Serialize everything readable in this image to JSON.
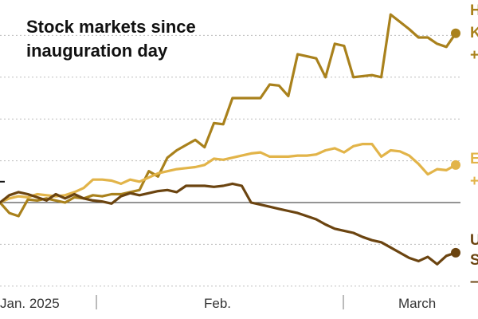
{
  "chart_data": {
    "type": "line",
    "title_lines": [
      "Stock markets since",
      "inauguration day"
    ],
    "xlabel": "",
    "ylabel": "",
    "x_ticks": [
      "Jan. 2025",
      "Feb.",
      "March"
    ],
    "ylim": [
      -8,
      20
    ],
    "baseline": 0,
    "grid": true,
    "legend": "end-labels-right",
    "series": [
      {
        "name": "Hong Kong",
        "end_label_lines": [
          "H",
          "K",
          "+"
        ],
        "color": "#a9811c",
        "y": [
          0.0,
          -1.0,
          -1.3,
          0.3,
          0.2,
          0.4,
          0.2,
          0.0,
          0.5,
          0.4,
          0.7,
          0.6,
          0.8,
          0.8,
          1.0,
          1.2,
          3.0,
          2.5,
          4.3,
          5.0,
          5.5,
          6.0,
          5.3,
          7.6,
          7.5,
          10.0,
          10.0,
          10.0,
          10.0,
          11.3,
          11.2,
          10.2,
          14.2,
          14.0,
          13.8,
          12.0,
          15.2,
          15.0,
          12.0,
          12.1,
          12.2,
          12.0,
          18.0,
          17.3,
          16.6,
          15.8,
          15.8,
          15.2,
          14.9,
          16.2
        ]
      },
      {
        "name": "Europe",
        "end_label_lines": [
          "E",
          "+"
        ],
        "color": "#e2b449",
        "y": [
          0.0,
          0.4,
          0.6,
          0.5,
          0.8,
          0.7,
          0.6,
          0.7,
          1.0,
          1.4,
          2.2,
          2.2,
          2.1,
          1.8,
          2.2,
          2.0,
          2.4,
          2.8,
          3.0,
          3.2,
          3.3,
          3.4,
          3.6,
          4.2,
          4.1,
          4.3,
          4.5,
          4.7,
          4.8,
          4.4,
          4.4,
          4.4,
          4.5,
          4.5,
          4.6,
          5.0,
          5.2,
          4.8,
          5.4,
          5.6,
          5.6,
          4.4,
          5.0,
          4.9,
          4.5,
          3.7,
          2.7,
          3.2,
          3.1,
          3.6
        ]
      },
      {
        "name": "United States",
        "end_label_lines": [
          "U",
          "S",
          "–"
        ],
        "color": "#6b4410",
        "y": [
          0.0,
          0.7,
          1.0,
          0.8,
          0.5,
          0.2,
          0.8,
          0.4,
          0.8,
          0.4,
          0.2,
          0.1,
          -0.1,
          0.6,
          0.9,
          0.7,
          0.9,
          1.1,
          1.2,
          1.0,
          1.6,
          1.6,
          1.6,
          1.5,
          1.6,
          1.8,
          1.6,
          0.0,
          -0.2,
          -0.4,
          -0.6,
          -0.8,
          -1.0,
          -1.3,
          -1.6,
          -2.1,
          -2.5,
          -2.7,
          -2.9,
          -3.3,
          -3.6,
          -3.8,
          -4.3,
          -4.8,
          -5.3,
          -5.6,
          -5.2,
          -5.9,
          -5.1,
          -4.8
        ]
      }
    ]
  }
}
